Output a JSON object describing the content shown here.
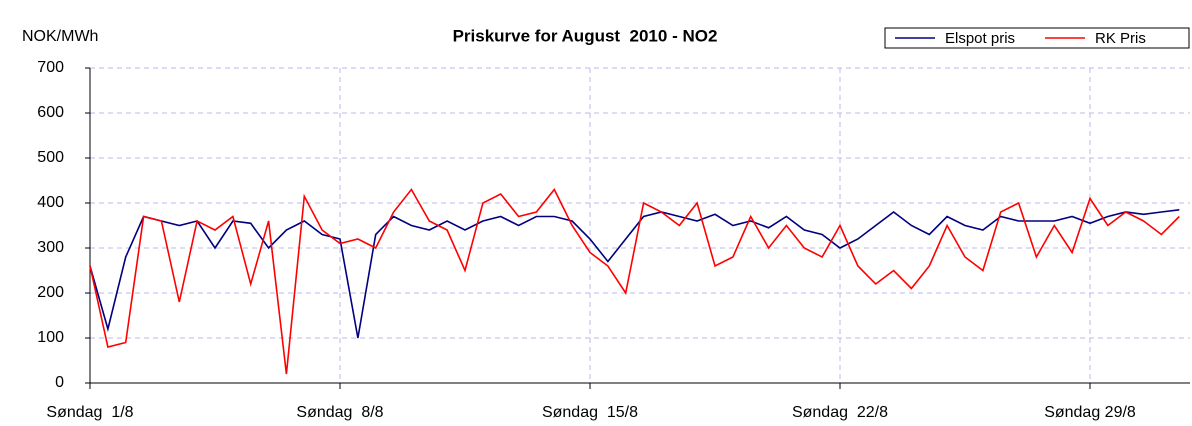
{
  "chart_data": {
    "type": "line",
    "title": "Priskurve for August  2010 - NO2",
    "y_label": "NOK/MWh",
    "x": [
      0,
      0.5,
      1,
      1.5,
      2,
      2.5,
      3,
      3.5,
      4,
      4.5,
      5,
      5.5,
      6,
      6.5,
      7,
      7.5,
      8,
      8.5,
      9,
      9.5,
      10,
      10.5,
      11,
      11.5,
      12,
      12.5,
      13,
      13.5,
      14,
      14.5,
      15,
      15.5,
      16,
      16.5,
      17,
      17.5,
      18,
      18.5,
      19,
      19.5,
      20,
      20.5,
      21,
      21.5,
      22,
      22.5,
      23,
      23.5,
      24,
      24.5,
      25,
      25.5,
      26,
      26.5,
      27,
      27.5,
      28,
      28.5,
      29,
      29.5,
      30,
      30.5
    ],
    "series": [
      {
        "name": "Elspot pris",
        "color": "#000080",
        "values": [
          260,
          120,
          280,
          370,
          360,
          350,
          360,
          300,
          360,
          355,
          300,
          340,
          360,
          330,
          320,
          100,
          330,
          370,
          350,
          340,
          360,
          340,
          360,
          370,
          350,
          370,
          370,
          360,
          320,
          270,
          320,
          370,
          380,
          370,
          360,
          375,
          350,
          360,
          345,
          370,
          340,
          330,
          300,
          320,
          350,
          380,
          350,
          330,
          370,
          350,
          340,
          370,
          360,
          360,
          360,
          370,
          355,
          370,
          380,
          375,
          380,
          385
        ]
      },
      {
        "name": "RK Pris",
        "color": "#ff0000",
        "values": [
          260,
          80,
          90,
          370,
          360,
          180,
          360,
          340,
          370,
          220,
          360,
          20,
          415,
          340,
          310,
          320,
          300,
          380,
          430,
          360,
          340,
          250,
          400,
          420,
          370,
          380,
          430,
          350,
          290,
          260,
          200,
          400,
          380,
          350,
          400,
          260,
          280,
          370,
          300,
          350,
          300,
          280,
          350,
          260,
          220,
          250,
          210,
          260,
          350,
          280,
          250,
          380,
          400,
          280,
          350,
          290,
          410,
          350,
          380,
          360,
          330,
          370
        ]
      }
    ],
    "xlim": [
      0,
      30.8
    ],
    "xticks": [
      {
        "value": 0,
        "label": "Søndag  1/8"
      },
      {
        "value": 7,
        "label": "Søndag  8/8"
      },
      {
        "value": 14,
        "label": "Søndag  15/8"
      },
      {
        "value": 21,
        "label": "Søndag  22/8"
      },
      {
        "value": 28,
        "label": "Søndag 29/8"
      }
    ],
    "ylim": [
      0,
      700
    ],
    "yticks": [
      0,
      100,
      200,
      300,
      400,
      500,
      600,
      700
    ],
    "grid": true,
    "legend": "top-right"
  }
}
